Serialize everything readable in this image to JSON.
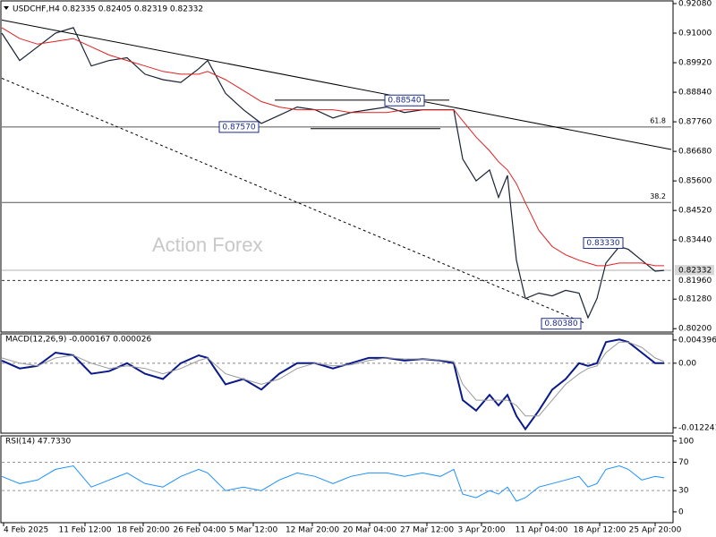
{
  "charts": [
    {
      "type": "line",
      "title": "USDCHF,H4 0.82335 0.82405 0.82319 0.82332",
      "watermark": "Action Forex",
      "x": [
        0,
        20,
        40,
        60,
        80,
        100,
        120,
        140,
        160,
        180,
        200,
        220,
        230,
        250,
        270,
        290,
        310,
        330,
        350,
        370,
        390,
        410,
        430,
        450,
        470,
        490,
        505,
        515,
        530,
        545,
        555,
        565,
        575,
        585,
        600,
        615,
        630,
        645,
        655,
        665,
        675,
        690,
        700,
        715,
        730,
        740
      ],
      "xlim": [
        0,
        748
      ],
      "ylim": [
        0.8011,
        0.9208
      ],
      "yticks": [
        {
          "value": 0.9208,
          "label": "0.92080"
        },
        {
          "value": 0.91,
          "label": "0.91000"
        },
        {
          "value": 0.8992,
          "label": "0.89920"
        },
        {
          "value": 0.8884,
          "label": "0.88840"
        },
        {
          "value": 0.8776,
          "label": "0.87760"
        },
        {
          "value": 0.8668,
          "label": "0.86680"
        },
        {
          "value": 0.856,
          "label": "0.85600"
        },
        {
          "value": 0.8452,
          "label": "0.84520"
        },
        {
          "value": 0.8344,
          "label": "0.83440"
        },
        {
          "value": 0.8128,
          "label": "0.81280"
        },
        {
          "value": 0.802,
          "label": "0.80200"
        }
      ],
      "series": [
        {
          "color": "#1a2233",
          "width": 1.2,
          "values": [
            0.91,
            0.9,
            0.905,
            0.91,
            0.912,
            0.898,
            0.9,
            0.901,
            0.895,
            0.893,
            0.892,
            0.897,
            0.9,
            0.888,
            0.882,
            0.877,
            0.88,
            0.883,
            0.882,
            0.879,
            0.881,
            0.882,
            0.883,
            0.881,
            0.882,
            0.882,
            0.882,
            0.864,
            0.856,
            0.86,
            0.85,
            0.858,
            0.827,
            0.813,
            0.815,
            0.814,
            0.816,
            0.815,
            0.806,
            0.813,
            0.826,
            0.832,
            0.831,
            0.827,
            0.823,
            0.8233
          ]
        },
        {
          "color": "#e02020",
          "width": 1,
          "values": [
            0.912,
            0.908,
            0.906,
            0.907,
            0.908,
            0.905,
            0.902,
            0.9,
            0.898,
            0.896,
            0.895,
            0.895,
            0.896,
            0.893,
            0.889,
            0.885,
            0.883,
            0.882,
            0.882,
            0.882,
            0.881,
            0.881,
            0.881,
            0.882,
            0.882,
            0.882,
            0.882,
            0.878,
            0.872,
            0.867,
            0.863,
            0.86,
            0.855,
            0.848,
            0.838,
            0.832,
            0.829,
            0.827,
            0.826,
            0.825,
            0.825,
            0.826,
            0.826,
            0.826,
            0.825,
            0.825
          ]
        }
      ],
      "hlines": [
        {
          "value": 0.8757,
          "label": "61.8",
          "color": "#555"
        },
        {
          "value": 0.8481,
          "label": "38.2",
          "color": "#555"
        },
        {
          "value": 0.82332,
          "label": "0.82332",
          "color": "#b0b0b0",
          "tag": true
        },
        {
          "value": 0.8196,
          "label": "0.81960",
          "color": "#333",
          "dash": true,
          "tag": true
        }
      ],
      "trendlines": [
        {
          "x": [
            0,
            748
          ],
          "y": [
            0.9148,
            0.8675
          ]
        },
        {
          "x": [
            0,
            650
          ],
          "y": [
            0.8935,
            0.8042
          ],
          "dash": true
        },
        {
          "x": [
            305,
            500
          ],
          "y": [
            0.8855,
            0.8855
          ]
        },
        {
          "x": [
            345,
            490
          ],
          "y": [
            0.8751,
            0.8751
          ]
        }
      ],
      "annotations": [
        {
          "x": 243,
          "value": 0.8757,
          "label": "0.87570"
        },
        {
          "x": 428,
          "value": 0.8854,
          "label": "0.88540"
        },
        {
          "x": 650,
          "value": 0.8333,
          "label": "0.83330"
        },
        {
          "x": 603,
          "value": 0.8038,
          "label": "0.80380"
        }
      ]
    },
    {
      "type": "line",
      "title": "MACD(12,26,9) -0.000167 0.000026",
      "ylim": [
        -0.0131,
        0.0054
      ],
      "yticks": [
        0.004396,
        {
          "value": 0,
          "label": "0.00"
        },
        -0.012241
      ],
      "hlines": [
        {
          "value": 0,
          "color": "#888",
          "dash": true
        }
      ],
      "series": [
        {
          "color": "#0a1a8a",
          "width": 2,
          "values": [
            0.0005,
            -0.001,
            -0.0005,
            0.002,
            0.0015,
            -0.002,
            -0.0015,
            0.0,
            -0.002,
            -0.003,
            0.0,
            0.0015,
            0.001,
            -0.004,
            -0.003,
            -0.005,
            -0.002,
            0.0,
            0.0,
            -0.001,
            0.0,
            0.001,
            0.001,
            0.0005,
            0.0008,
            0.0005,
            0.0,
            -0.007,
            -0.009,
            -0.006,
            -0.008,
            -0.006,
            -0.01,
            -0.0125,
            -0.009,
            -0.005,
            -0.003,
            0.0,
            -0.0005,
            0.0,
            0.004,
            0.0045,
            0.004,
            0.002,
            0.0,
            0.0
          ]
        },
        {
          "color": "#9a9a9a",
          "width": 1,
          "values": [
            0.001,
            0.0,
            -0.0005,
            0.001,
            0.0015,
            0.0,
            -0.001,
            -0.0005,
            -0.001,
            -0.002,
            -0.001,
            0.0005,
            0.001,
            -0.002,
            -0.003,
            -0.004,
            -0.003,
            -0.001,
            0.0,
            -0.0005,
            -0.0003,
            0.0005,
            0.001,
            0.0008,
            0.0008,
            0.0006,
            0.0003,
            -0.004,
            -0.007,
            -0.007,
            -0.007,
            -0.007,
            -0.008,
            -0.01,
            -0.01,
            -0.007,
            -0.004,
            -0.002,
            -0.001,
            -0.0005,
            0.002,
            0.004,
            0.004,
            0.003,
            0.001,
            0.0003
          ]
        }
      ]
    },
    {
      "type": "line",
      "title": "RSI(14) 47.7330",
      "ylim": [
        -14,
        106
      ],
      "yticks": [
        100,
        70,
        30,
        0
      ],
      "hlines": [
        {
          "value": 70,
          "color": "#999",
          "dash": true
        },
        {
          "value": 30,
          "color": "#999",
          "dash": true
        }
      ],
      "series": [
        {
          "color": "#1e90ff",
          "width": 1,
          "values": [
            50,
            40,
            45,
            60,
            65,
            35,
            45,
            55,
            40,
            35,
            50,
            60,
            55,
            30,
            35,
            30,
            45,
            55,
            50,
            40,
            50,
            55,
            55,
            50,
            55,
            50,
            60,
            25,
            20,
            30,
            25,
            35,
            15,
            20,
            35,
            40,
            45,
            50,
            35,
            40,
            60,
            65,
            60,
            45,
            50,
            48
          ]
        }
      ],
      "xticks": [
        {
          "value": 2,
          "label": "4 Feb 2025"
        },
        {
          "value": 93,
          "label": "11 Feb 12:00"
        },
        {
          "value": 158,
          "label": "18 Feb 20:00"
        },
        {
          "value": 221,
          "label": "26 Feb 04:00"
        },
        {
          "value": 281,
          "label": "5 Mar 12:00"
        },
        {
          "value": 347,
          "label": "12 Mar 20:00"
        },
        {
          "value": 411,
          "label": "20 Mar 04:00"
        },
        {
          "value": 475,
          "label": "27 Mar 12:00"
        },
        {
          "value": 536,
          "label": "3 Apr 20:00"
        },
        {
          "value": 603,
          "label": "11 Apr 04:00"
        },
        {
          "value": 668,
          "label": "18 Apr 12:00"
        },
        {
          "value": 730,
          "label": "25 Apr 20:00"
        }
      ]
    }
  ]
}
